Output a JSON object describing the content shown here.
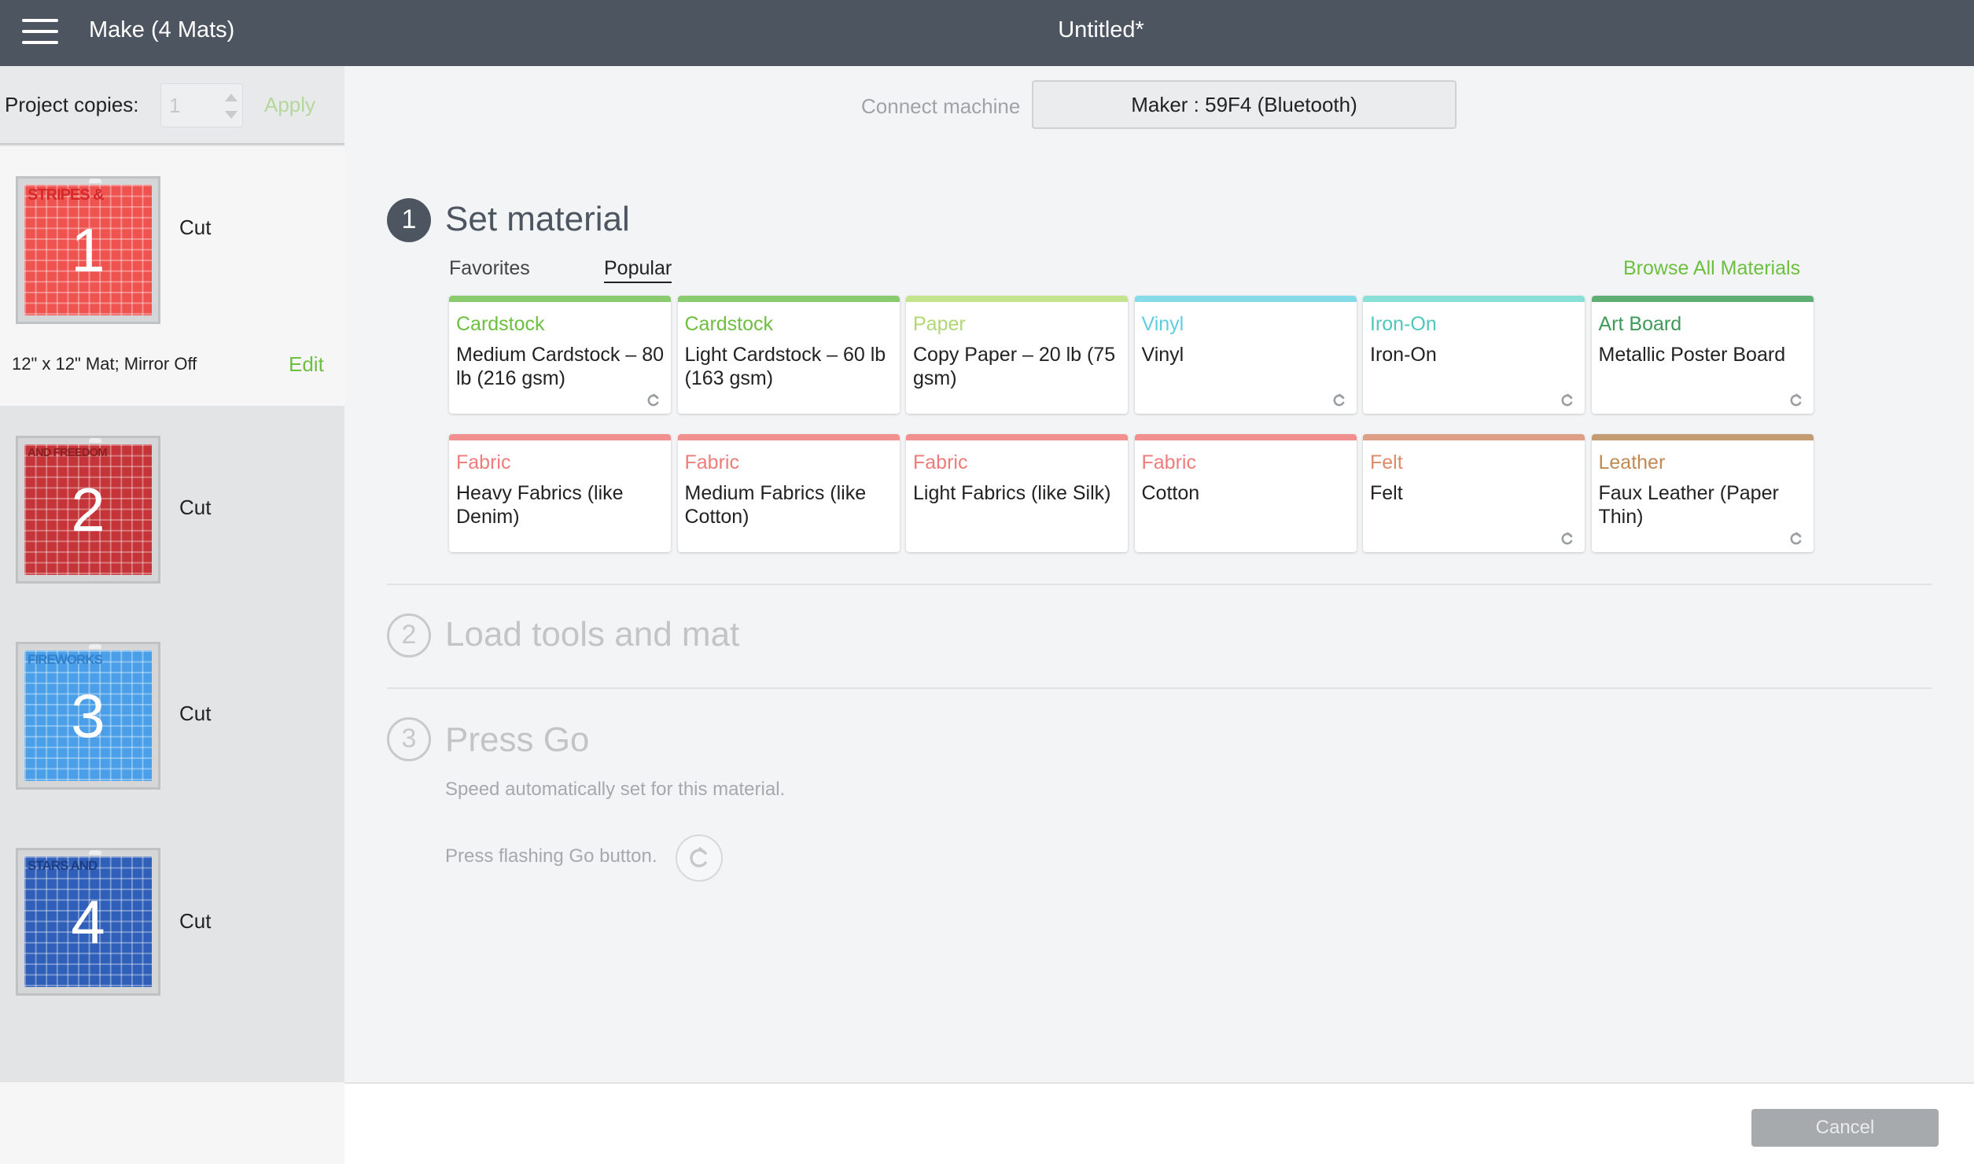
{
  "header": {
    "title": "Make (4 Mats)",
    "document_title": "Untitled*"
  },
  "sidebar": {
    "copies_label": "Project copies:",
    "copies_value": "1",
    "apply_label": "Apply",
    "mat_info": "12\" x 12\" Mat; Mirror Off",
    "edit_label": "Edit",
    "mats": [
      {
        "number": "1",
        "label": "Cut",
        "word": "STRIPES &",
        "color": "#ef5350",
        "word_color": "#e52b2b"
      },
      {
        "number": "2",
        "label": "Cut",
        "word": "AND FREEDOM",
        "color": "#c43438",
        "word_color": "#8e1f22"
      },
      {
        "number": "3",
        "label": "Cut",
        "word": "FIREWORKS",
        "color": "#4a9fe8",
        "word_color": "#2f7fcc"
      },
      {
        "number": "4",
        "label": "Cut",
        "word": "STARS AND",
        "color": "#2f5fb8",
        "word_color": "#1d3e86"
      }
    ]
  },
  "main": {
    "connect_label": "Connect machine",
    "machine": "Maker : 59F4 (Bluetooth)",
    "steps": [
      {
        "number": "1",
        "title": "Set material"
      },
      {
        "number": "2",
        "title": "Load tools and mat"
      },
      {
        "number": "3",
        "title": "Press Go"
      }
    ],
    "tabs": {
      "favorites": "Favorites",
      "popular": "Popular"
    },
    "browse_label": "Browse All Materials",
    "materials": [
      {
        "category": "Cardstock",
        "name": "Medium Cardstock – 80 lb (216 gsm)",
        "bar_color": "#8bcb70",
        "cat_color": "#6dbf3f",
        "icon": "cricut-c-icon"
      },
      {
        "category": "Cardstock",
        "name": "Light Cardstock – 60 lb (163 gsm)",
        "bar_color": "#8bcb70",
        "cat_color": "#6dbf3f"
      },
      {
        "category": "Paper",
        "name": "Copy Paper – 20 lb (75 gsm)",
        "bar_color": "#c3e38c",
        "cat_color": "#b1d774"
      },
      {
        "category": "Vinyl",
        "name": "Vinyl",
        "bar_color": "#86dbe8",
        "cat_color": "#5fcde0",
        "icon": "cricut-c-icon"
      },
      {
        "category": "Iron-On",
        "name": "Iron-On",
        "bar_color": "#88e0d6",
        "cat_color": "#4fc7bb",
        "icon": "cricut-c-icon"
      },
      {
        "category": "Art Board",
        "name": "Metallic Poster Board",
        "bar_color": "#5fae74",
        "cat_color": "#3d9a58",
        "icon": "cricut-c-icon"
      },
      {
        "category": "Fabric",
        "name": "Heavy Fabrics (like Denim)",
        "bar_color": "#f28f8f",
        "cat_color": "#ef7b7b"
      },
      {
        "category": "Fabric",
        "name": "Medium Fabrics (like Cotton)",
        "bar_color": "#f28f8f",
        "cat_color": "#ef7b7b"
      },
      {
        "category": "Fabric",
        "name": "Light Fabrics (like Silk)",
        "bar_color": "#f28f8f",
        "cat_color": "#ef7b7b"
      },
      {
        "category": "Fabric",
        "name": "Cotton",
        "bar_color": "#f28f8f",
        "cat_color": "#ef7b7b"
      },
      {
        "category": "Felt",
        "name": "Felt",
        "bar_color": "#dd9f86",
        "cat_color": "#dd8a68",
        "icon": "cricut-c-icon"
      },
      {
        "category": "Leather",
        "name": "Faux Leather (Paper Thin)",
        "bar_color": "#c49c74",
        "cat_color": "#c08a52",
        "icon": "cricut-c-icon"
      }
    ],
    "speed_text": "Speed automatically set for this material.",
    "go_text": "Press flashing Go button."
  },
  "footer": {
    "cancel_label": "Cancel"
  }
}
